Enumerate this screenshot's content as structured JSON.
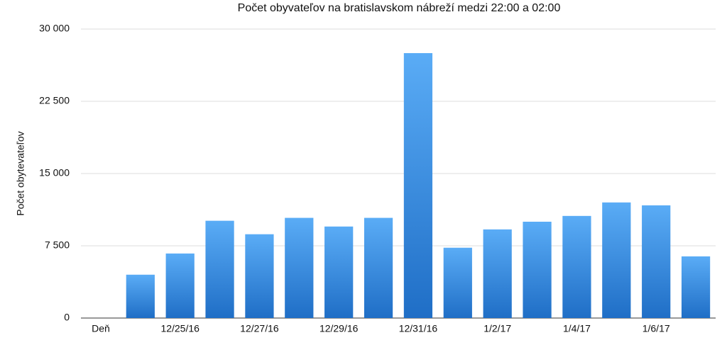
{
  "chart_data": {
    "type": "bar",
    "title": "Počet obyvateľov na bratislavskom nábreží medzi 22:00 a 02:00",
    "y_label": "Počet obytevateľov",
    "categories": [
      "Deň",
      null,
      "12/25/16",
      null,
      "12/27/16",
      null,
      "12/29/16",
      null,
      "12/31/16",
      null,
      "1/2/17",
      null,
      "1/4/17",
      null,
      "1/6/17",
      null
    ],
    "values": [
      null,
      4500,
      6700,
      10100,
      8700,
      10400,
      9500,
      10400,
      27500,
      7300,
      9200,
      10000,
      10600,
      12000,
      11700,
      6400
    ],
    "color": [
      "#5aacf6",
      "#1f6ec6"
    ],
    "ylim": [
      0,
      30000
    ],
    "yticks": [
      0,
      {
        "value": 7500,
        "label": "7 500"
      },
      {
        "value": 15000,
        "label": "15 000"
      },
      {
        "value": 22500,
        "label": "22 500"
      },
      {
        "value": 30000,
        "label": "30 000"
      }
    ],
    "grid": true
  }
}
